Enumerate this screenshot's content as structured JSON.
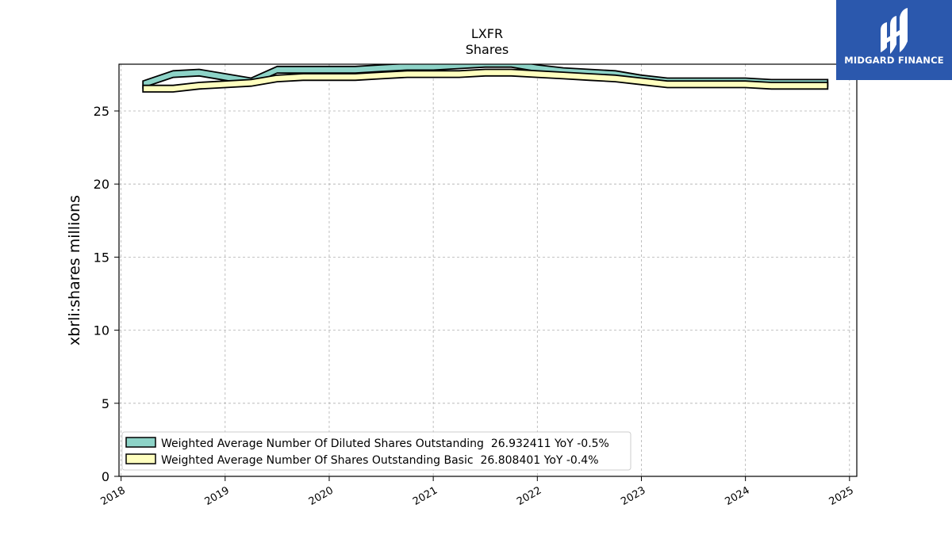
{
  "logo": {
    "name": "MIDGARD FINANCE",
    "icon": "midgard-m-icon",
    "background": "#2b58ad"
  },
  "chart_data": {
    "type": "area",
    "title": "LXFR",
    "subtitle": "Shares",
    "ylabel": "xbrli:shares millions",
    "xlabel": "",
    "xlim": [
      2017.98,
      2025.07
    ],
    "ylim": [
      0,
      28.2
    ],
    "yticks": [
      0,
      5,
      10,
      15,
      20,
      25
    ],
    "xticks": [
      2018,
      2019,
      2020,
      2021,
      2022,
      2023,
      2024,
      2025
    ],
    "grid": true,
    "legend_position": "lower-left",
    "band_height": 0.45,
    "series": [
      {
        "name": "Weighted Average Number Of Diluted Shares Outstanding  26.932411 YoY -0.5%",
        "color": "#8dd3c7",
        "x": [
          2018.21,
          2018.5,
          2018.75,
          2019.0,
          2019.25,
          2019.5,
          2019.75,
          2020.0,
          2020.25,
          2020.5,
          2020.75,
          2021.0,
          2021.25,
          2021.5,
          2021.75,
          2022.0,
          2022.25,
          2022.5,
          2022.75,
          2023.0,
          2023.25,
          2023.5,
          2023.75,
          2024.0,
          2024.25,
          2024.5,
          2024.79
        ],
        "values": [
          26.6,
          27.3,
          27.4,
          27.1,
          26.8,
          27.6,
          27.6,
          27.6,
          27.6,
          27.7,
          27.8,
          27.8,
          27.9,
          28.0,
          28.0,
          27.7,
          27.5,
          27.4,
          27.3,
          27.0,
          26.8,
          26.8,
          26.8,
          26.8,
          26.7,
          26.7,
          26.7
        ]
      },
      {
        "name": "Weighted Average Number Of Shares Outstanding Basic  26.808401 YoY -0.4%",
        "color": "#ffffbf",
        "x": [
          2018.21,
          2018.5,
          2018.75,
          2019.0,
          2019.25,
          2019.5,
          2019.75,
          2020.0,
          2020.25,
          2020.5,
          2020.75,
          2021.0,
          2021.25,
          2021.5,
          2021.75,
          2022.0,
          2022.25,
          2022.5,
          2022.75,
          2023.0,
          2023.25,
          2023.5,
          2023.75,
          2024.0,
          2024.25,
          2024.5,
          2024.79
        ],
        "values": [
          26.3,
          26.3,
          26.5,
          26.6,
          26.7,
          27.0,
          27.1,
          27.1,
          27.1,
          27.2,
          27.3,
          27.3,
          27.3,
          27.4,
          27.4,
          27.3,
          27.2,
          27.1,
          27.0,
          26.8,
          26.6,
          26.6,
          26.6,
          26.6,
          26.5,
          26.5,
          26.5
        ]
      }
    ]
  }
}
